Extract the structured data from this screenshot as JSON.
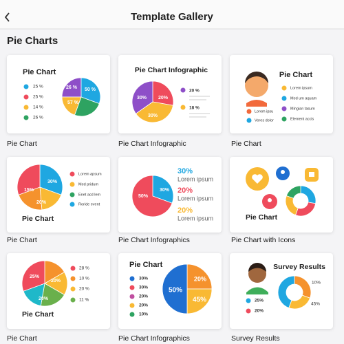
{
  "header": {
    "title": "Template Gallery"
  },
  "section": {
    "title": "Pie Charts"
  },
  "cards": [
    {
      "caption": "Pie Chart",
      "thumb": {
        "title": "Pie Chart",
        "legend": [
          "25 %",
          "25 %",
          "14 %",
          "26 %"
        ],
        "slices": [
          "26 %",
          "50 %",
          "57 %"
        ]
      }
    },
    {
      "caption": "Pie Chart Infographic",
      "thumb": {
        "title": "Pie Chart Infographic",
        "legend": [
          "20 %",
          "18 %"
        ],
        "slices": [
          "30%",
          "20%",
          "30%"
        ]
      }
    },
    {
      "caption": "Pie Chart",
      "thumb": {
        "title": "Pie Chart",
        "legend": [
          "Lorem ipsum",
          "Med um aquam",
          "Mingian tasum",
          "Element accis",
          "Lorem ipsu",
          "Vores dolor"
        ]
      }
    },
    {
      "caption": "Pie Chart",
      "thumb": {
        "title": "Pie Chart",
        "legend": [
          "Lorem apsum",
          "Med pridum",
          "Enet acd lem",
          "Roride event"
        ],
        "slices": [
          "30%",
          "15%",
          "20%"
        ]
      }
    },
    {
      "caption": "Pie Chart Infographics",
      "thumb": {
        "legend": [
          "30%",
          "Lorem ipsum",
          "20%",
          "Lorem ipsum",
          "20%",
          "Lorem ipsum"
        ],
        "slices": [
          "50%",
          "30%"
        ]
      }
    },
    {
      "caption": "Pie Chart with Icons",
      "thumb": {
        "title": "Pie Chart"
      }
    },
    {
      "caption": "Pie Chart",
      "thumb": {
        "title": "Pie Chart",
        "legend": [
          "28 %",
          "10 %",
          "20 %",
          "11 %"
        ],
        "slices": [
          "25%",
          "20%",
          "20%"
        ]
      }
    },
    {
      "caption": "Pie Chart Infographics",
      "thumb": {
        "title": "Pie Chart",
        "legend": [
          "30%",
          "30%",
          "20%",
          "20%",
          "10%"
        ],
        "slices": [
          "50%",
          "20%",
          "45%"
        ]
      }
    },
    {
      "caption": "Survey Results",
      "thumb": {
        "title": "Survey Results",
        "legend": [
          "10%",
          "45%",
          "25%",
          "20%"
        ]
      }
    }
  ]
}
